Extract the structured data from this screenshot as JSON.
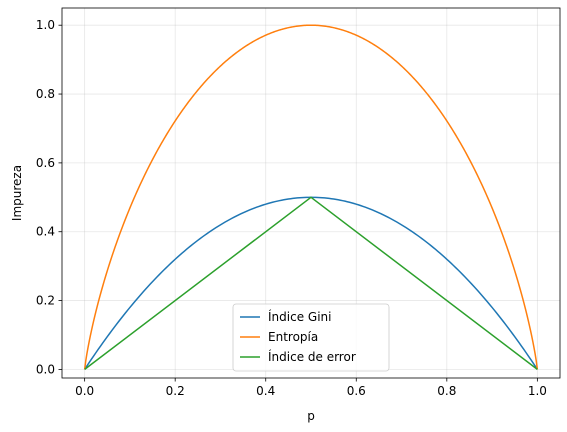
{
  "chart_data": {
    "type": "line",
    "title": "",
    "xlabel": "p",
    "ylabel": "Impureza",
    "xlim": [
      -0.05,
      1.05
    ],
    "ylim": [
      -0.025,
      1.05
    ],
    "xticks": [
      0.0,
      0.2,
      0.4,
      0.6,
      0.8,
      1.0
    ],
    "xtick_labels": [
      "0.0",
      "0.2",
      "0.4",
      "0.6",
      "0.8",
      "1.0"
    ],
    "yticks": [
      0.0,
      0.2,
      0.4,
      0.6,
      0.8,
      1.0
    ],
    "ytick_labels": [
      "0.0",
      "0.2",
      "0.4",
      "0.6",
      "0.8",
      "1.0"
    ],
    "grid": true,
    "legend_position": "lower-center",
    "series": [
      {
        "name": "Índice Gini",
        "color": "#1f77b4",
        "x": [
          0.0,
          0.05,
          0.1,
          0.15,
          0.2,
          0.25,
          0.3,
          0.35,
          0.4,
          0.45,
          0.5,
          0.55,
          0.6,
          0.65,
          0.7,
          0.75,
          0.8,
          0.85,
          0.9,
          0.95,
          1.0
        ],
        "y": [
          0.0,
          0.095,
          0.18,
          0.255,
          0.32,
          0.375,
          0.42,
          0.455,
          0.48,
          0.495,
          0.5,
          0.495,
          0.48,
          0.455,
          0.42,
          0.375,
          0.32,
          0.255,
          0.18,
          0.095,
          0.0
        ]
      },
      {
        "name": "Entropía",
        "color": "#ff7f0e",
        "x": [
          0.0,
          0.01,
          0.025,
          0.05,
          0.075,
          0.1,
          0.15,
          0.2,
          0.25,
          0.3,
          0.35,
          0.4,
          0.45,
          0.5,
          0.55,
          0.6,
          0.65,
          0.7,
          0.75,
          0.8,
          0.85,
          0.9,
          0.925,
          0.95,
          0.975,
          0.99,
          1.0
        ],
        "y": [
          0.0,
          0.081,
          0.169,
          0.286,
          0.384,
          0.469,
          0.61,
          0.722,
          0.811,
          0.881,
          0.934,
          0.971,
          0.993,
          1.0,
          0.993,
          0.971,
          0.934,
          0.881,
          0.811,
          0.722,
          0.61,
          0.469,
          0.384,
          0.286,
          0.169,
          0.081,
          0.0
        ]
      },
      {
        "name": "Índice de error",
        "color": "#2ca02c",
        "x": [
          0.0,
          0.5,
          1.0
        ],
        "y": [
          0.0,
          0.5,
          0.0
        ]
      }
    ]
  }
}
